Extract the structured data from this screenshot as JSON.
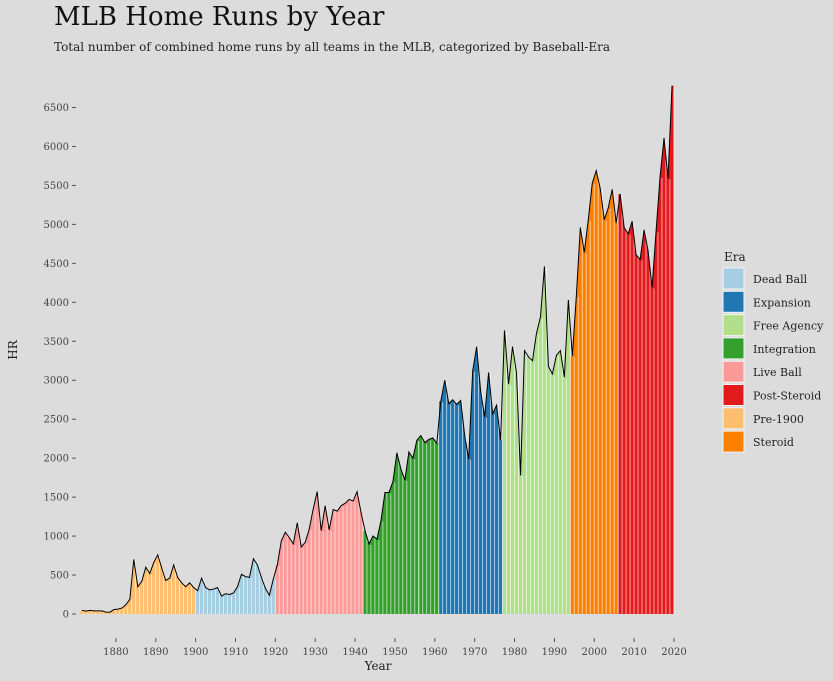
{
  "chart_data": {
    "type": "area",
    "title": "MLB Home Runs by Year",
    "subtitle": "Total number of combined home runs by all teams in the MLB, categorized by Baseball-Era",
    "xlabel": "Year",
    "ylabel": "HR",
    "xlim": [
      1871,
      2019
    ],
    "ylim": [
      0,
      6776
    ],
    "x_ticks": [
      1880,
      1890,
      1900,
      1910,
      1920,
      1930,
      1940,
      1950,
      1960,
      1970,
      1980,
      1990,
      2000,
      2010,
      2020
    ],
    "y_ticks": [
      0,
      500,
      1000,
      1500,
      2000,
      2500,
      3000,
      3500,
      4000,
      4500,
      5000,
      5500,
      6000,
      6500
    ],
    "grid": false,
    "legend": {
      "title": "Era",
      "position": "right"
    },
    "eras": [
      {
        "name": "Dead Ball",
        "color": "#a6cee3"
      },
      {
        "name": "Expansion",
        "color": "#1f78b4"
      },
      {
        "name": "Free Agency",
        "color": "#b2df8a"
      },
      {
        "name": "Integration",
        "color": "#33a02c"
      },
      {
        "name": "Live Ball",
        "color": "#fb9a99"
      },
      {
        "name": "Post-Steroid",
        "color": "#e31a1c"
      },
      {
        "name": "Pre-1900",
        "color": "#fdbf6f"
      },
      {
        "name": "Steroid",
        "color": "#ff7f00"
      }
    ],
    "series": [
      {
        "name": "Pre-1900",
        "x": [
          1871,
          1872,
          1873,
          1874,
          1875,
          1876,
          1877,
          1878,
          1879,
          1880,
          1881,
          1882,
          1883,
          1884,
          1885,
          1886,
          1887,
          1888,
          1889,
          1890,
          1891,
          1892,
          1893,
          1894,
          1895,
          1896,
          1897,
          1898,
          1899
        ],
        "values": [
          47,
          37,
          47,
          40,
          40,
          40,
          24,
          23,
          58,
          62,
          76,
          118,
          189,
          700,
          350,
          420,
          600,
          520,
          660,
          760,
          590,
          430,
          460,
          630,
          470,
          400,
          350,
          400,
          340
        ]
      },
      {
        "name": "Dead Ball",
        "x": [
          1900,
          1901,
          1902,
          1903,
          1904,
          1905,
          1906,
          1907,
          1908,
          1909,
          1910,
          1911,
          1912,
          1913,
          1914,
          1915,
          1916,
          1917,
          1918,
          1919
        ],
        "values": [
          300,
          460,
          340,
          310,
          320,
          340,
          230,
          260,
          250,
          270,
          350,
          510,
          480,
          470,
          710,
          630,
          470,
          330,
          240,
          450
        ]
      },
      {
        "name": "Live Ball",
        "x": [
          1920,
          1921,
          1922,
          1923,
          1924,
          1925,
          1926,
          1927,
          1928,
          1929,
          1930,
          1931,
          1932,
          1933,
          1934,
          1935,
          1936,
          1937,
          1938,
          1939,
          1940,
          1941
        ],
        "values": [
          630,
          940,
          1050,
          980,
          900,
          1170,
          860,
          920,
          1090,
          1350,
          1570,
          1070,
          1390,
          1080,
          1340,
          1320,
          1390,
          1420,
          1470,
          1450,
          1570,
          1300
        ]
      },
      {
        "name": "Integration",
        "x": [
          1942,
          1943,
          1944,
          1945,
          1946,
          1947,
          1948,
          1949,
          1950,
          1951,
          1952,
          1953,
          1954,
          1955,
          1955,
          1956,
          1957,
          1958,
          1959,
          1960
        ],
        "values": [
          1070,
          900,
          1000,
          960,
          1200,
          1560,
          1560,
          1700,
          2070,
          1860,
          1720,
          2080,
          2000,
          2230,
          2230,
          2290,
          2200,
          2240,
          2260,
          2190
        ]
      },
      {
        "name": "Expansion",
        "x": [
          1961,
          1962,
          1963,
          1964,
          1965,
          1966,
          1967,
          1968,
          1969,
          1970,
          1971,
          1972,
          1973,
          1974,
          1975,
          1976
        ],
        "values": [
          2730,
          3000,
          2700,
          2750,
          2690,
          2740,
          2290,
          1990,
          3120,
          3430,
          2860,
          2530,
          3100,
          2570,
          2680,
          2230
        ]
      },
      {
        "name": "Free Agency",
        "x": [
          1977,
          1978,
          1979,
          1980,
          1981,
          1982,
          1983,
          1984,
          1985,
          1986,
          1987,
          1988,
          1989,
          1990,
          1991,
          1992,
          1993
        ],
        "values": [
          3640,
          2950,
          3430,
          3090,
          1780,
          3380,
          3300,
          3250,
          3600,
          3810,
          4460,
          3180,
          3080,
          3320,
          3380,
          3040,
          4030
        ]
      },
      {
        "name": "Steroid",
        "x": [
          1994,
          1995,
          1996,
          1997,
          1998,
          1999,
          2000,
          2001,
          2002,
          2003,
          2004,
          2005
        ],
        "values": [
          3310,
          4080,
          4960,
          4640,
          5060,
          5530,
          5690,
          5460,
          5060,
          5210,
          5450,
          5020
        ]
      },
      {
        "name": "Post-Steroid",
        "x": [
          2006,
          2007,
          2008,
          2009,
          2010,
          2011,
          2012,
          2013,
          2014,
          2015,
          2016,
          2017,
          2018,
          2019
        ],
        "values": [
          5390,
          4960,
          4880,
          5040,
          4610,
          4550,
          4930,
          4660,
          4190,
          4910,
          5610,
          6110,
          5590,
          6780
        ]
      }
    ]
  }
}
